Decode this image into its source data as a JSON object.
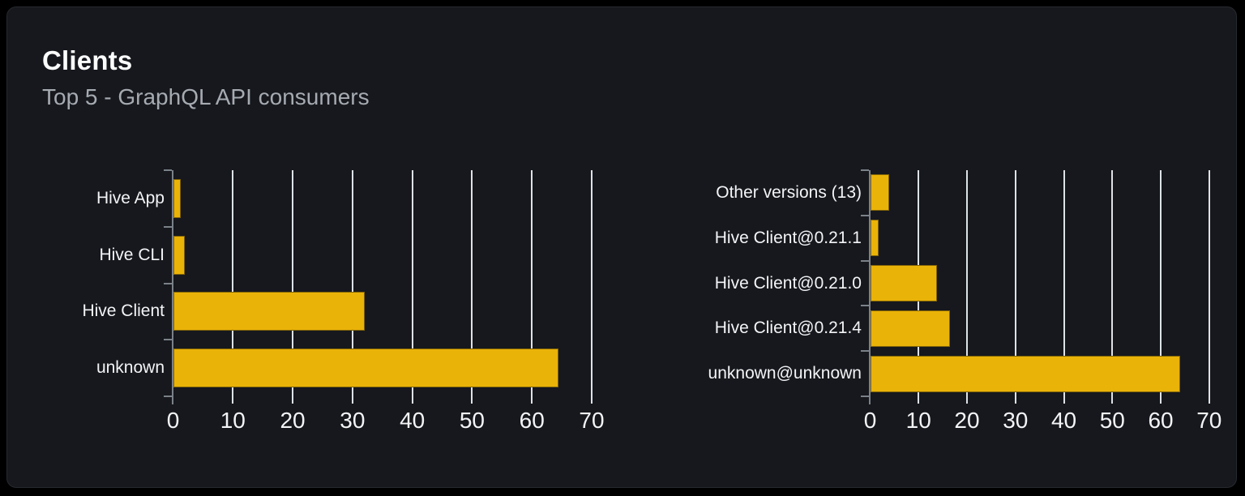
{
  "card": {
    "title": "Clients",
    "subtitle": "Top 5 - GraphQL API consumers"
  },
  "colors": {
    "bar": "#eab308",
    "gridline": "#dde2e8",
    "axis": "#7b8188",
    "card_background": "#16181d",
    "page_background": "#000000",
    "title_text": "#fbfcfc",
    "subtitle_text": "#a6abb2",
    "label_text": "#f3f4f6"
  },
  "chart_data": [
    {
      "type": "bar",
      "orientation": "horizontal",
      "name": "clients",
      "categories": [
        "Hive App",
        "Hive CLI",
        "Hive Client",
        "unknown"
      ],
      "values": [
        1.3,
        2,
        32,
        64.5
      ],
      "xlim": [
        0,
        70
      ],
      "xticks": [
        0,
        10,
        20,
        30,
        40,
        50,
        60,
        70
      ],
      "grid": true,
      "legend": false,
      "bar_color": "#eab308"
    },
    {
      "type": "bar",
      "orientation": "horizontal",
      "name": "client-versions",
      "categories": [
        "Other versions (13)",
        "Hive Client@0.21.1",
        "Hive Client@0.21.0",
        "Hive Client@0.21.4",
        "unknown@unknown"
      ],
      "values": [
        4,
        1.8,
        13.8,
        16.5,
        64
      ],
      "xlim": [
        0,
        70
      ],
      "xticks": [
        0,
        10,
        20,
        30,
        40,
        50,
        60,
        70
      ],
      "grid": true,
      "legend": false,
      "bar_color": "#eab308"
    }
  ]
}
